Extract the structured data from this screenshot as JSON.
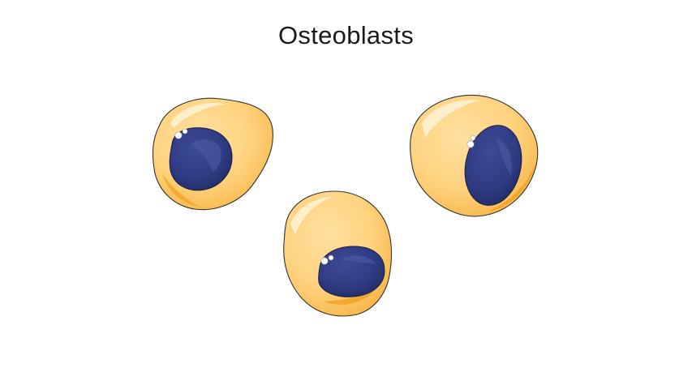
{
  "slide": {
    "title": "Osteoblasts"
  },
  "cells": {
    "count": 3,
    "cytoplasm_color": "#FFD27F",
    "cytoplasm_edge_color": "#F0A020",
    "nucleus_color": "#2E3A80",
    "nucleus_highlight_color": "#4F5CA8",
    "background_color": "#FFFFFF"
  }
}
